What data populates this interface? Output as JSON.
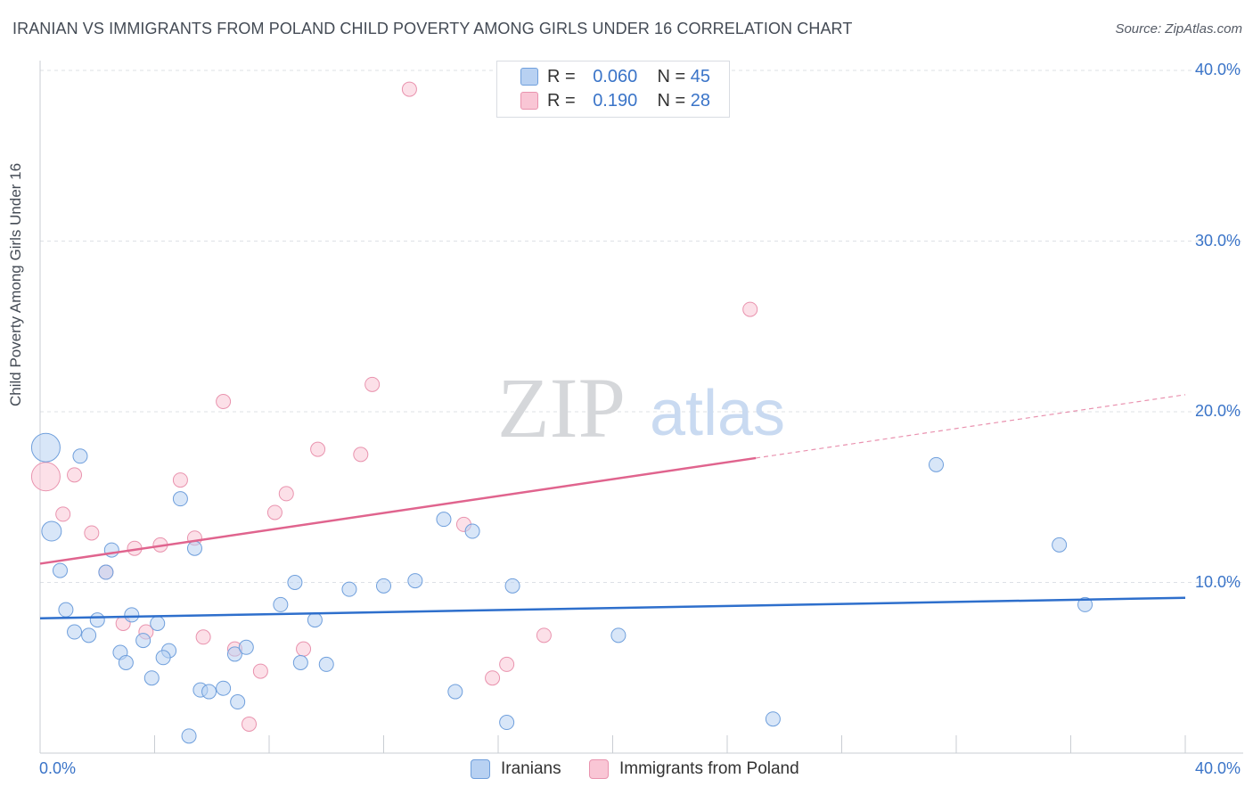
{
  "title": "IRANIAN VS IMMIGRANTS FROM POLAND CHILD POVERTY AMONG GIRLS UNDER 16 CORRELATION CHART",
  "source": "Source: ZipAtlas.com",
  "watermark": {
    "zip": "ZIP",
    "atlas": "atlas"
  },
  "legend": {
    "iranians": {
      "r_label": "R =",
      "r_value": "0.060",
      "n_label": "N =",
      "n_value": "45"
    },
    "poland": {
      "r_label": "R =",
      "r_value": "0.190",
      "n_label": "N =",
      "n_value": "28"
    }
  },
  "colors": {
    "iranians_fill": "#b8d1f2",
    "iranians_stroke": "#6f9fdc",
    "iranians_line": "#2e6fcc",
    "poland_fill": "#f9c6d5",
    "poland_stroke": "#e993ae",
    "poland_line": "#e0648e",
    "accent_text": "#3a74c8",
    "grid": "#dde1e6"
  },
  "chart_data": {
    "type": "scatter",
    "title": "IRANIAN VS IMMIGRANTS FROM POLAND CHILD POVERTY AMONG GIRLS UNDER 16 CORRELATION CHART",
    "xlabel": "",
    "ylabel": "Child Poverty Among Girls Under 16",
    "xlim": [
      0,
      40
    ],
    "ylim": [
      0,
      40
    ],
    "x_tick_labels": [
      "0.0%",
      "40.0%"
    ],
    "y_tick_values": [
      10,
      20,
      30,
      40
    ],
    "y_tick_labels": [
      "10.0%",
      "20.0%",
      "30.0%",
      "40.0%"
    ],
    "grid": true,
    "series": [
      {
        "name": "Iranians",
        "trend": {
          "x": [
            0,
            40
          ],
          "y": [
            7.9,
            9.1
          ],
          "dashed_from": null
        },
        "points": [
          {
            "x": 0.2,
            "y": 17.9,
            "s": 16
          },
          {
            "x": 1.4,
            "y": 17.4
          },
          {
            "x": 0.4,
            "y": 13.0,
            "s": 11
          },
          {
            "x": 0.7,
            "y": 10.7
          },
          {
            "x": 2.5,
            "y": 11.9
          },
          {
            "x": 2.3,
            "y": 10.6
          },
          {
            "x": 0.9,
            "y": 8.4
          },
          {
            "x": 2.0,
            "y": 7.8
          },
          {
            "x": 1.2,
            "y": 7.1
          },
          {
            "x": 1.7,
            "y": 6.9
          },
          {
            "x": 3.2,
            "y": 8.1
          },
          {
            "x": 4.1,
            "y": 7.6
          },
          {
            "x": 3.6,
            "y": 6.6
          },
          {
            "x": 2.8,
            "y": 5.9
          },
          {
            "x": 3.0,
            "y": 5.3
          },
          {
            "x": 4.5,
            "y": 6.0
          },
          {
            "x": 4.3,
            "y": 5.6
          },
          {
            "x": 3.9,
            "y": 4.4
          },
          {
            "x": 4.9,
            "y": 14.9
          },
          {
            "x": 5.4,
            "y": 12.0
          },
          {
            "x": 5.6,
            "y": 3.7
          },
          {
            "x": 5.9,
            "y": 3.6
          },
          {
            "x": 6.4,
            "y": 3.8
          },
          {
            "x": 6.8,
            "y": 5.8
          },
          {
            "x": 7.2,
            "y": 6.2
          },
          {
            "x": 6.9,
            "y": 3.0
          },
          {
            "x": 5.2,
            "y": 1.0
          },
          {
            "x": 8.4,
            "y": 8.7
          },
          {
            "x": 8.9,
            "y": 10.0
          },
          {
            "x": 9.6,
            "y": 7.8
          },
          {
            "x": 9.1,
            "y": 5.3
          },
          {
            "x": 10.0,
            "y": 5.2
          },
          {
            "x": 10.8,
            "y": 9.6
          },
          {
            "x": 12.0,
            "y": 9.8
          },
          {
            "x": 13.1,
            "y": 10.1
          },
          {
            "x": 14.1,
            "y": 13.7
          },
          {
            "x": 15.1,
            "y": 13.0
          },
          {
            "x": 16.5,
            "y": 9.8
          },
          {
            "x": 14.5,
            "y": 3.6
          },
          {
            "x": 16.3,
            "y": 1.8
          },
          {
            "x": 20.2,
            "y": 6.9
          },
          {
            "x": 25.6,
            "y": 2.0
          },
          {
            "x": 31.3,
            "y": 16.9
          },
          {
            "x": 35.6,
            "y": 12.2
          },
          {
            "x": 36.5,
            "y": 8.7
          }
        ]
      },
      {
        "name": "Immigrants from Poland",
        "trend": {
          "x": [
            0,
            40
          ],
          "y": [
            11.1,
            21.0
          ],
          "dashed_from": 25.0
        },
        "points": [
          {
            "x": 0.2,
            "y": 16.2,
            "s": 16
          },
          {
            "x": 1.2,
            "y": 16.3
          },
          {
            "x": 0.8,
            "y": 14.0
          },
          {
            "x": 1.8,
            "y": 12.9
          },
          {
            "x": 2.3,
            "y": 10.6
          },
          {
            "x": 2.9,
            "y": 7.6
          },
          {
            "x": 3.3,
            "y": 12.0
          },
          {
            "x": 3.7,
            "y": 7.1
          },
          {
            "x": 4.2,
            "y": 12.2
          },
          {
            "x": 4.9,
            "y": 16.0
          },
          {
            "x": 5.4,
            "y": 12.6
          },
          {
            "x": 5.7,
            "y": 6.8
          },
          {
            "x": 6.4,
            "y": 20.6
          },
          {
            "x": 6.8,
            "y": 6.1
          },
          {
            "x": 7.7,
            "y": 4.8
          },
          {
            "x": 8.2,
            "y": 14.1
          },
          {
            "x": 7.3,
            "y": 1.7
          },
          {
            "x": 8.6,
            "y": 15.2
          },
          {
            "x": 9.2,
            "y": 6.1
          },
          {
            "x": 9.7,
            "y": 17.8
          },
          {
            "x": 11.2,
            "y": 17.5
          },
          {
            "x": 11.6,
            "y": 21.6
          },
          {
            "x": 12.9,
            "y": 38.9
          },
          {
            "x": 14.8,
            "y": 13.4
          },
          {
            "x": 15.8,
            "y": 4.4
          },
          {
            "x": 16.3,
            "y": 5.2
          },
          {
            "x": 17.6,
            "y": 6.9
          },
          {
            "x": 24.8,
            "y": 26.0
          }
        ]
      }
    ]
  },
  "bottom_legend": {
    "iranians": "Iranians",
    "poland": "Immigrants from Poland"
  }
}
